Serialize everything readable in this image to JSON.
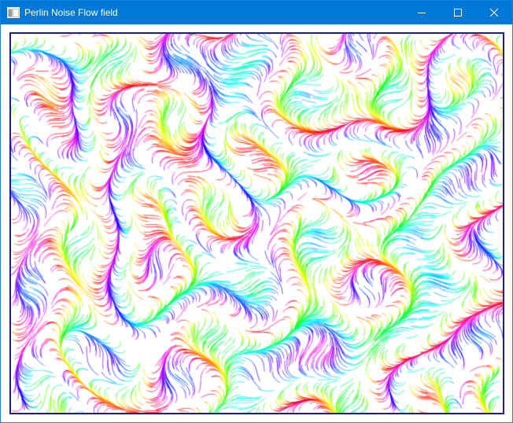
{
  "window": {
    "title": "Perlin Noise Flow field",
    "app_icon": "window-app-icon",
    "controls": {
      "minimize_icon": "minimize-icon",
      "maximize_icon": "maximize-icon",
      "close_icon": "close-icon"
    },
    "colors": {
      "titlebar": "#0078d7",
      "title_text": "#ffffff",
      "frame_border": "#1d1d8f",
      "background": "#ffffff"
    }
  },
  "visualization": {
    "kind": "perlin-noise-flow-field",
    "palette": "full-hue-rainbow"
  }
}
